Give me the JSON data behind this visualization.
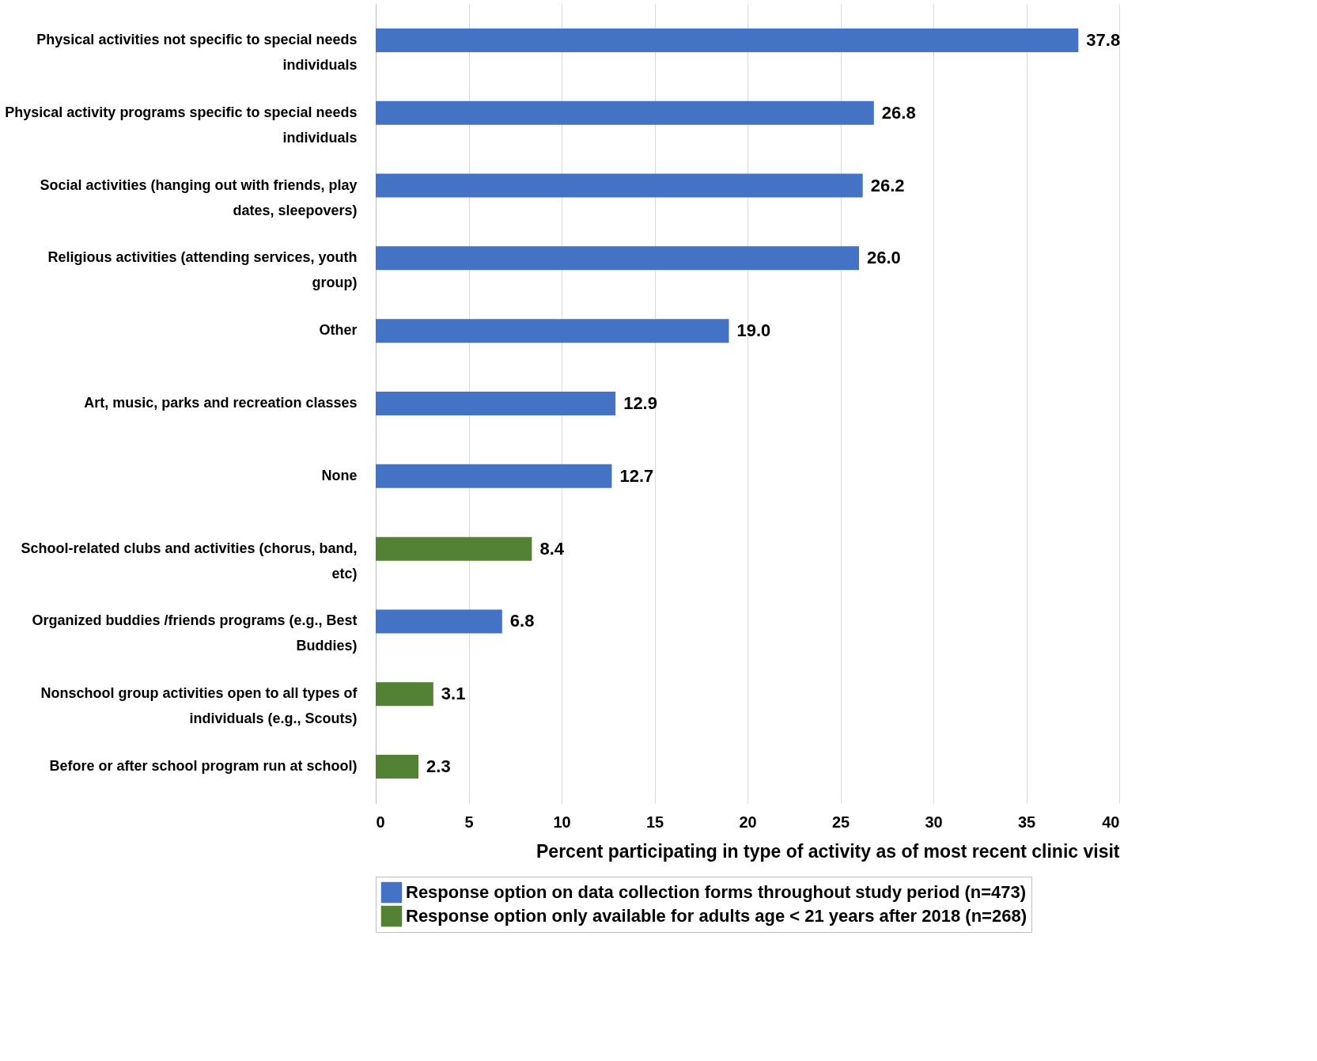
{
  "chart_data": {
    "type": "bar",
    "orientation": "horizontal",
    "xlabel": "Percent participating in type of activity as of most recent clinic visit",
    "categories": [
      "Physical activities not specific to special needs individuals",
      "Physical activity programs specific to special needs individuals",
      "Social activities (hanging out with friends, play dates, sleepovers)",
      "Religious activities (attending services, youth group)",
      "Other",
      "Art, music, parks and recreation classes",
      "None",
      "School-related clubs and activities (chorus, band, etc)",
      "Organized buddies /friends programs (e.g., Best Buddies)",
      "Nonschool group activities open to all types of individuals (e.g., Scouts)",
      "Before or after school program run at school)"
    ],
    "series": [
      {
        "name": "Response option on data collection forms throughout study period (n=473)",
        "color": "#4472c4",
        "values": [
          37.8,
          26.8,
          26.2,
          26.0,
          19.0,
          12.9,
          12.7,
          null,
          6.8,
          null,
          null
        ],
        "value_labels": [
          "37.8",
          "26.8",
          "26.2",
          "26.0",
          "19.0",
          "12.9",
          "12.7",
          null,
          "6.8",
          null,
          null
        ]
      },
      {
        "name": "Response option only available for adults age < 21 years after 2018 (n=268)",
        "color": "#548235",
        "values": [
          null,
          null,
          null,
          null,
          null,
          null,
          null,
          8.4,
          null,
          3.1,
          2.3
        ],
        "value_labels": [
          null,
          null,
          null,
          null,
          null,
          null,
          null,
          "8.4",
          null,
          "3.1",
          "2.3"
        ]
      }
    ],
    "xlim": [
      0,
      40
    ],
    "xticks": [
      0,
      5,
      10,
      15,
      20,
      25,
      30,
      35,
      40
    ],
    "grid": "x",
    "legend": "bottom left"
  }
}
